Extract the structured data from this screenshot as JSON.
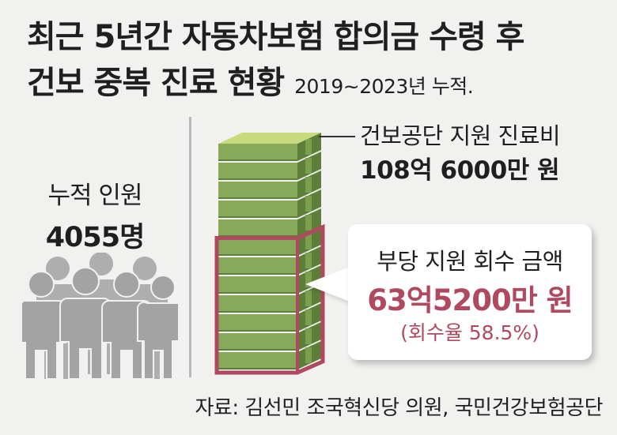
{
  "title": {
    "line1": "최근 5년간 자동차보험 합의금 수령 후",
    "line2": "건보 중복 진료 현황",
    "subtitle": "2019~2023년 누적."
  },
  "people": {
    "label": "누적 인원",
    "value": "4055명"
  },
  "total": {
    "label": "건보공단 지원 진료비",
    "value": "108억 6000만 원"
  },
  "recovered": {
    "label": "부당 지원 회수 금액",
    "value": "63억5200만 원",
    "rate": "(회수율 58.5%)"
  },
  "source": "자료: 김선민 조국혁신당 의원, 국민건강보험공단",
  "colors": {
    "background": "#f1f1ef",
    "money_green": "#86a95a",
    "money_green_dark": "#5d7e38",
    "money_top": "#c7db7e",
    "highlight_border": "#b0485f",
    "highlight_text": "#b0485f",
    "people_gray": "#a3a3a3"
  },
  "chart_data": {
    "type": "bar",
    "categories": [
      "건보공단 지원 진료비",
      "부당 지원 회수 금액"
    ],
    "values": [
      108.6,
      63.52
    ],
    "unit": "억 원",
    "annotations": [
      "108억 6000만 원",
      "63억5200만 원",
      "(회수율 58.5%)",
      "4055명"
    ]
  }
}
